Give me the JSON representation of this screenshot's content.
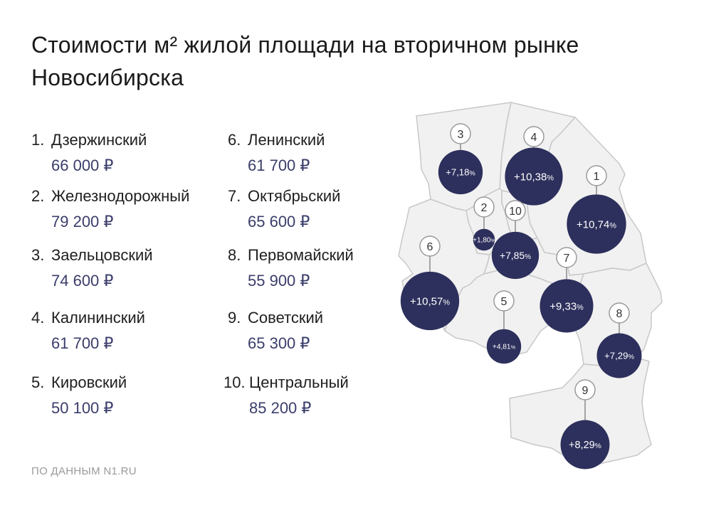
{
  "title": {
    "line1": "Стоимости м² жилой площади на вторичном рынке",
    "line2": "Новосибирска"
  },
  "colors": {
    "bubble": "#2d2f5c",
    "price": "#3a3d6a",
    "region_fill": "#f1f1f1",
    "region_stroke": "#c8c8c8"
  },
  "districts": [
    {
      "num": "1.",
      "name": "Дзержинский",
      "price": "66 000 ₽"
    },
    {
      "num": "2.",
      "name": "Железнодорожный",
      "price": "79 200 ₽"
    },
    {
      "num": "3.",
      "name": "Заельцовский",
      "price": "74 600 ₽"
    },
    {
      "num": "4.",
      "name": "Калининский",
      "price": "61 700 ₽"
    },
    {
      "num": "5.",
      "name": "Кировский",
      "price": "50 100 ₽"
    },
    {
      "num": "6.",
      "name": "Ленинский",
      "price": "61 700 ₽"
    },
    {
      "num": "7.",
      "name": "Октябрьский",
      "price": "65 600 ₽"
    },
    {
      "num": "8.",
      "name": "Первомайский",
      "price": "55 900 ₽"
    },
    {
      "num": "9.",
      "name": "Советский",
      "price": "65 300 ₽"
    },
    {
      "num": "10.",
      "name": "Центральный",
      "price": "85 200 ₽"
    }
  ],
  "map_markers": [
    {
      "id": "1",
      "label": "+10,74",
      "unit": "%",
      "change_pct": 10.74
    },
    {
      "id": "2",
      "label": "+1,80",
      "unit": "%",
      "change_pct": 1.8
    },
    {
      "id": "3",
      "label": "+7,18",
      "unit": "%",
      "change_pct": 7.18
    },
    {
      "id": "4",
      "label": "+10,38",
      "unit": "%",
      "change_pct": 10.38
    },
    {
      "id": "5",
      "label": "+4,81",
      "unit": "%",
      "change_pct": 4.81
    },
    {
      "id": "6",
      "label": "+10,57",
      "unit": "%",
      "change_pct": 10.57
    },
    {
      "id": "7",
      "label": "+9,33",
      "unit": "%",
      "change_pct": 9.33
    },
    {
      "id": "8",
      "label": "+7,29",
      "unit": "%",
      "change_pct": 7.29
    },
    {
      "id": "9",
      "label": "+8,29",
      "unit": "%",
      "change_pct": 8.29
    },
    {
      "id": "10",
      "label": "+7,85",
      "unit": "%",
      "change_pct": 7.85
    }
  ],
  "source": "ПО ДАННЫМ N1.RU"
}
